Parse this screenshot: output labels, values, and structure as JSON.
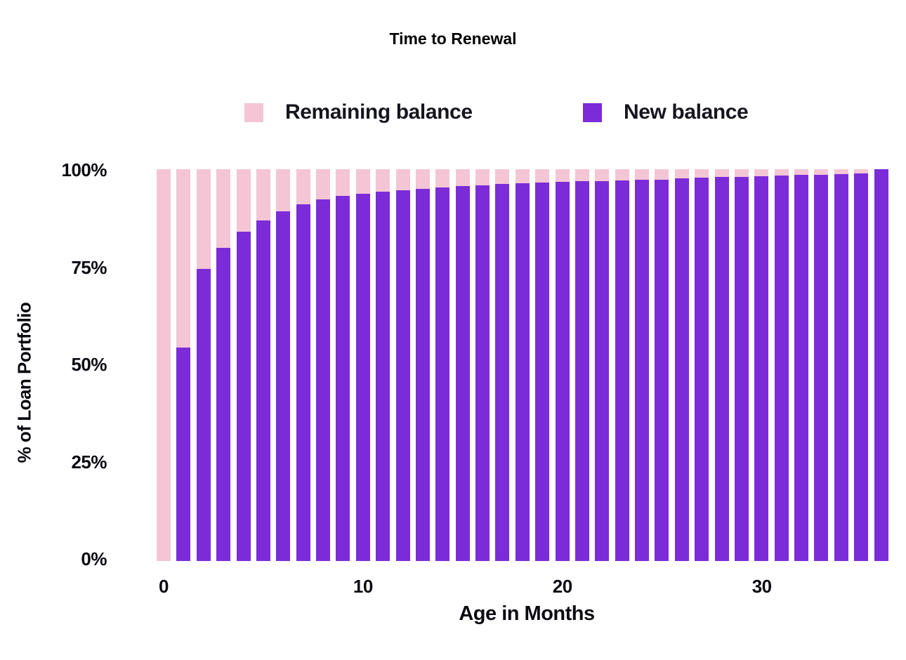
{
  "title": "Time to Renewal",
  "colors": {
    "new_balance": "#7C2BD9",
    "remaining_balance": "#F4C5D5",
    "text": "#16161f"
  },
  "legend": [
    {
      "label": "Remaining balance",
      "color": "#F4C5D5"
    },
    {
      "label": "New balance",
      "color": "#7C2BD9"
    }
  ],
  "y_axis": {
    "title": "% of Loan Portfolio",
    "ticks": [
      "100%",
      "75%",
      "50%",
      "25%",
      "0%"
    ]
  },
  "x_axis": {
    "title": "Age in Months",
    "ticks": [
      0,
      10,
      20,
      30
    ]
  },
  "chart_data": {
    "type": "bar",
    "stacked": true,
    "title": "Time to Renewal",
    "xlabel": "Age in Months",
    "ylabel": "% of Loan Portfolio",
    "ylim": [
      0,
      100
    ],
    "grid": false,
    "legend_position": "top",
    "x": [
      0,
      1,
      2,
      3,
      4,
      5,
      6,
      7,
      8,
      9,
      10,
      11,
      12,
      13,
      14,
      15,
      16,
      17,
      18,
      19,
      20,
      21,
      22,
      23,
      24,
      25,
      26,
      27,
      28,
      29,
      30,
      31,
      32,
      33,
      34,
      35,
      36
    ],
    "series": [
      {
        "name": "New balance",
        "color": "#7C2BD9",
        "values": [
          0,
          54.5,
          74.5,
          80,
          84,
          87,
          89.2,
          91,
          92.3,
          93.2,
          93.8,
          94.3,
          94.7,
          95.0,
          95.3,
          95.7,
          95.9,
          96.2,
          96.4,
          96.6,
          96.7,
          96.9,
          97.0,
          97.2,
          97.3,
          97.4,
          97.6,
          97.9,
          98.0,
          98.1,
          98.2,
          98.4,
          98.5,
          98.6,
          98.7,
          98.9,
          100
        ]
      },
      {
        "name": "Remaining balance",
        "color": "#F4C5D5",
        "values": [
          100,
          45.5,
          25.5,
          20,
          16,
          13,
          10.8,
          9,
          7.7,
          6.8,
          6.2,
          5.7,
          5.3,
          5.0,
          4.7,
          4.3,
          4.1,
          3.8,
          3.6,
          3.4,
          3.3,
          3.1,
          3.0,
          2.8,
          2.7,
          2.6,
          2.4,
          2.1,
          2.0,
          1.9,
          1.8,
          1.6,
          1.5,
          1.4,
          1.3,
          1.1,
          0
        ]
      }
    ]
  }
}
